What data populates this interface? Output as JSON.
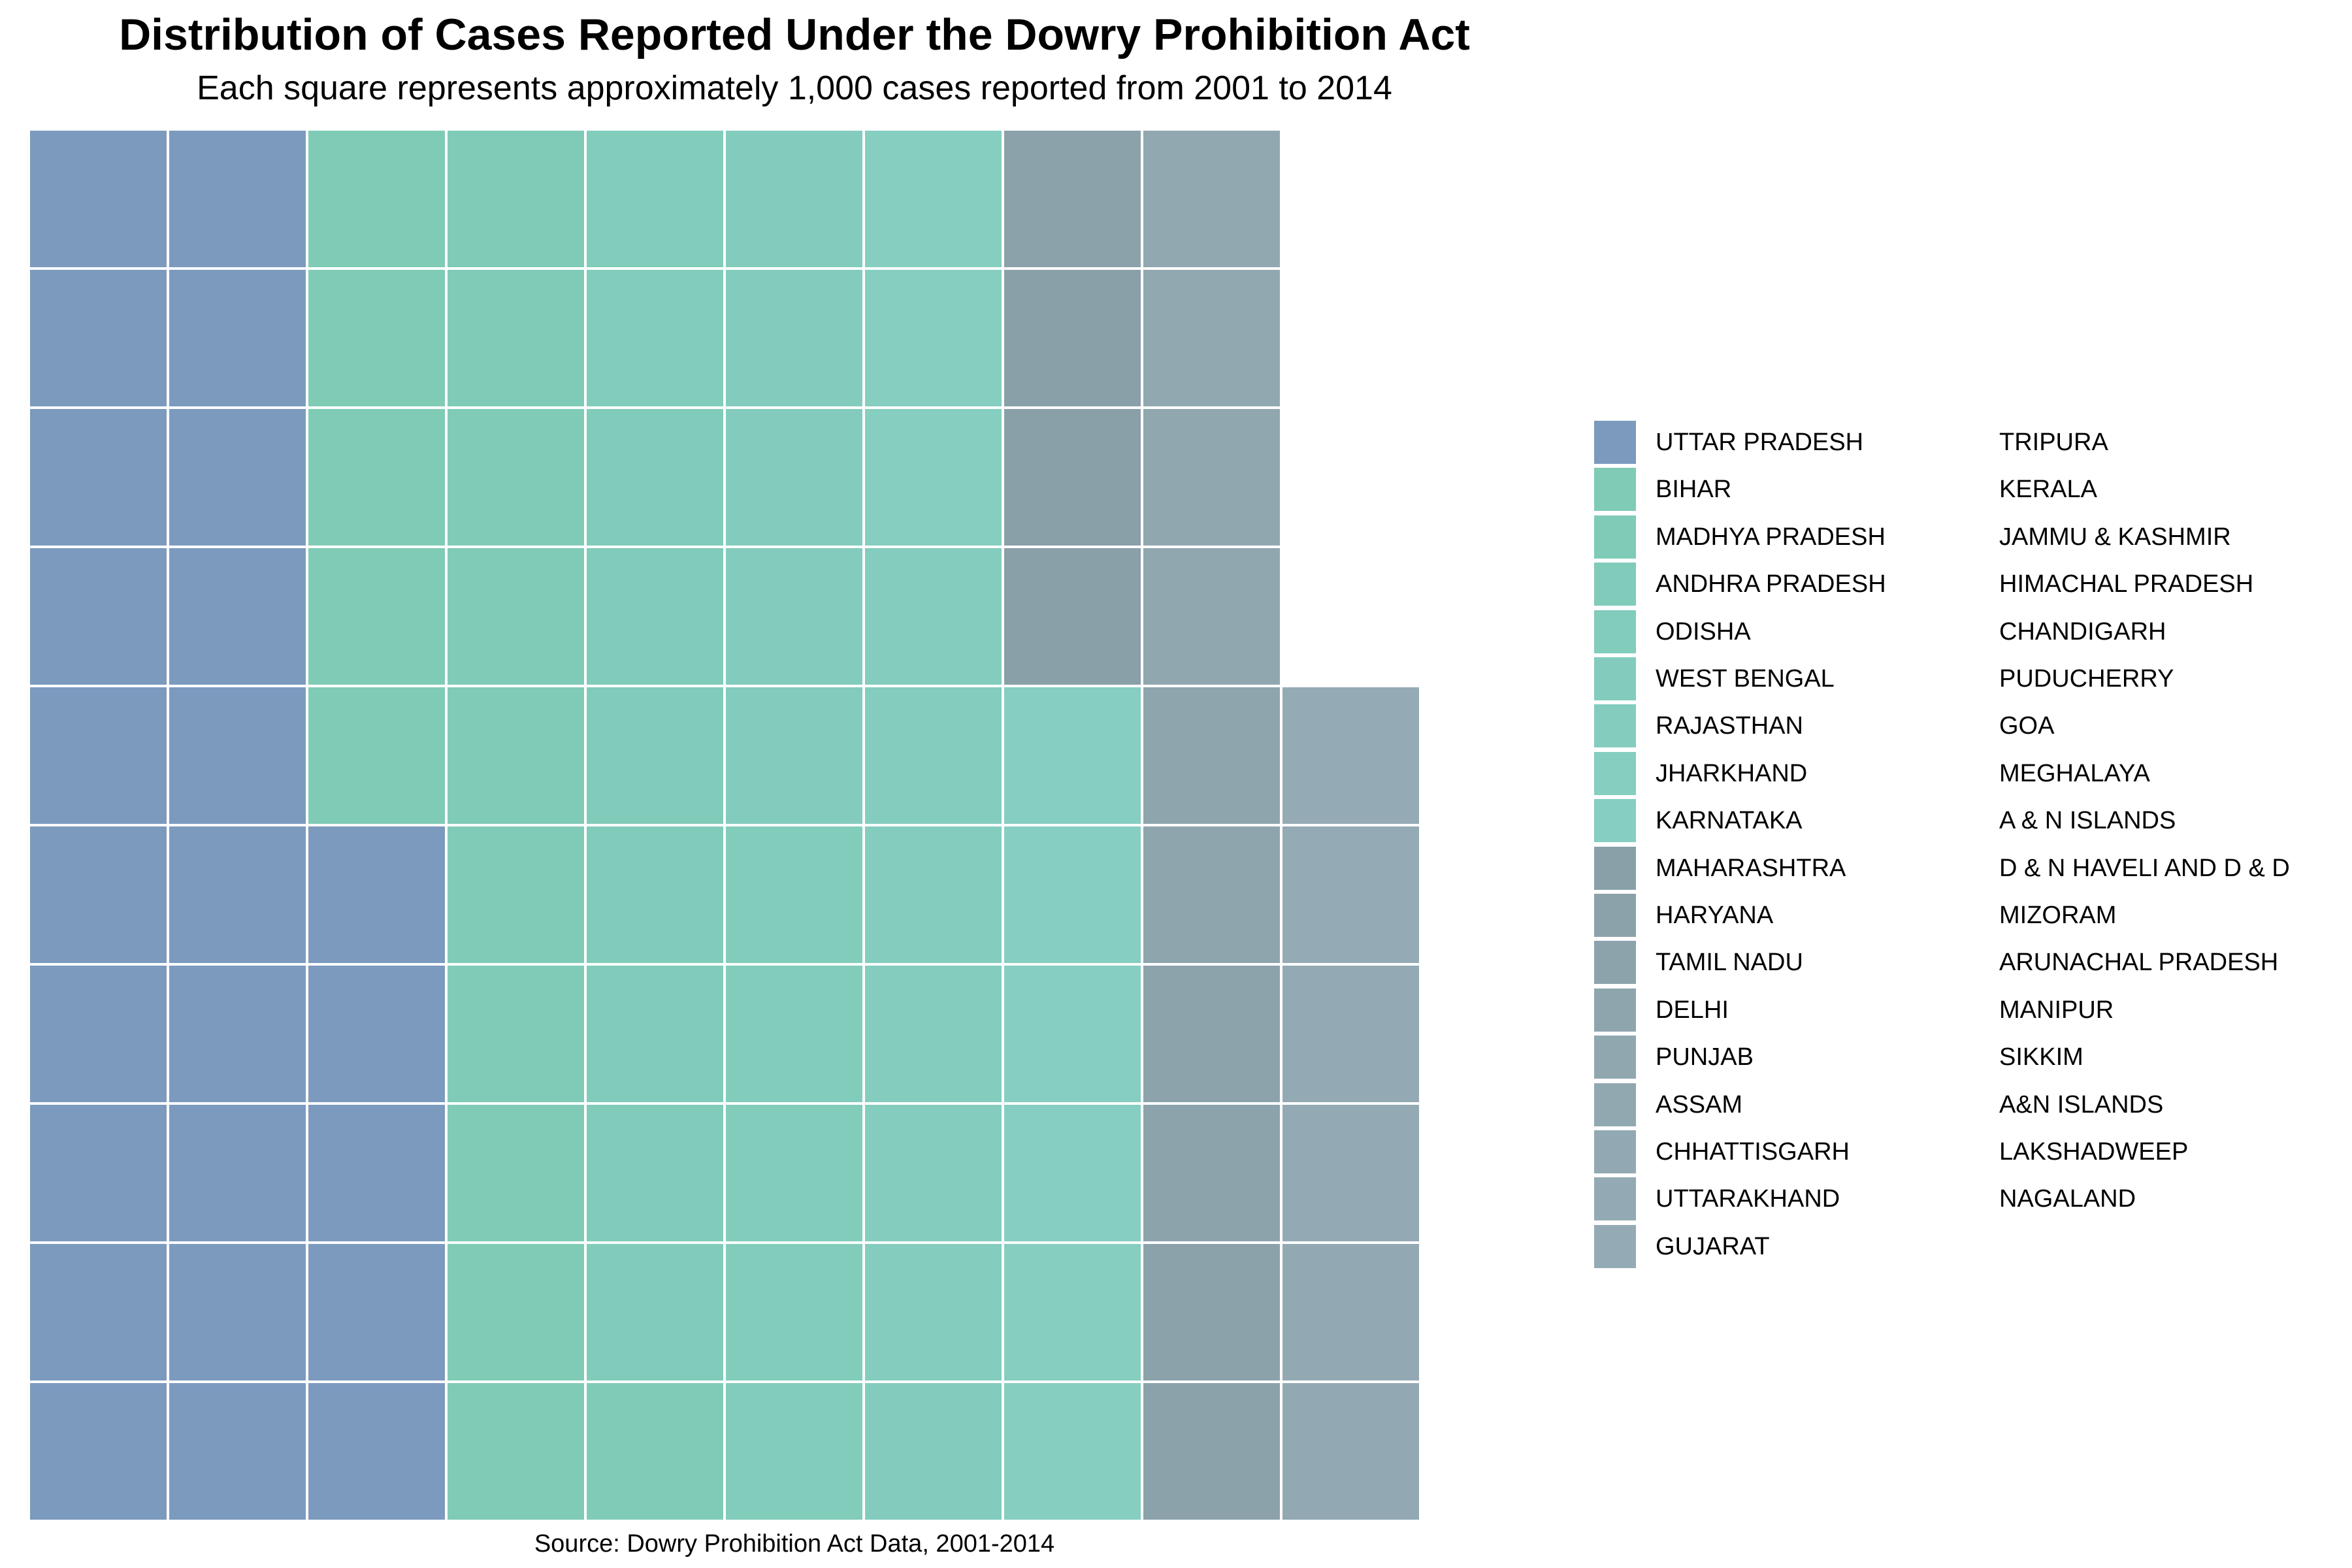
{
  "chart_data": {
    "type": "waffle",
    "title": "Distribution of Cases Reported Under the Dowry Prohibition Act",
    "subtitle": "Each square represents approximately 1,000 cases reported from 2001 to 2014",
    "caption": "Source: Dowry Prohibition Act Data, 2001-2014",
    "grid": {
      "rows": 10,
      "columns": 11,
      "fill_order": "column-major, bottom-to-top"
    },
    "unit": "approximately 1,000 cases",
    "legend_position": "right",
    "series": [
      {
        "name": "UTTAR PRADESH",
        "squares": 25,
        "color": "#7B9ABE"
      },
      {
        "name": "BIHAR",
        "squares": 8,
        "color": "#7FCBB6"
      },
      {
        "name": "MADHYA PRADESH",
        "squares": 8,
        "color": "#7FCBB8"
      },
      {
        "name": "ANDHRA PRADESH",
        "squares": 7,
        "color": "#81CBBA"
      },
      {
        "name": "ODISHA",
        "squares": 7,
        "color": "#82CCBB"
      },
      {
        "name": "WEST BENGAL",
        "squares": 6,
        "color": "#83CCBD"
      },
      {
        "name": "RAJASTHAN",
        "squares": 6,
        "color": "#84CDBE"
      },
      {
        "name": "JHARKHAND",
        "squares": 5,
        "color": "#85CEC0"
      },
      {
        "name": "KARNATAKA",
        "squares": 4,
        "color": "#86CEC1"
      },
      {
        "name": "MAHARASHTRA",
        "squares": 3,
        "color": "#89A0A8"
      },
      {
        "name": "HARYANA",
        "squares": 3,
        "color": "#8BA2AA"
      },
      {
        "name": "TAMIL NADU",
        "squares": 2,
        "color": "#8CA3AC"
      },
      {
        "name": "DELHI",
        "squares": 2,
        "color": "#8EA5AE"
      },
      {
        "name": "PUNJAB",
        "squares": 2,
        "color": "#90A7B0"
      },
      {
        "name": "ASSAM",
        "squares": 2,
        "color": "#91A8B1"
      },
      {
        "name": "CHHATTISGARH",
        "squares": 2,
        "color": "#92A9B3"
      },
      {
        "name": "UTTARAKHAND",
        "squares": 2,
        "color": "#93AAB4"
      },
      {
        "name": "GUJARAT",
        "squares": 2,
        "color": "#94ABB5"
      },
      {
        "name": "TRIPURA",
        "squares": 0
      },
      {
        "name": "KERALA",
        "squares": 0
      },
      {
        "name": "JAMMU & KASHMIR",
        "squares": 0
      },
      {
        "name": "HIMACHAL PRADESH",
        "squares": 0
      },
      {
        "name": "CHANDIGARH",
        "squares": 0
      },
      {
        "name": "PUDUCHERRY",
        "squares": 0
      },
      {
        "name": "GOA",
        "squares": 0
      },
      {
        "name": "MEGHALAYA",
        "squares": 0
      },
      {
        "name": "A & N ISLANDS",
        "squares": 0
      },
      {
        "name": "D & N HAVELI AND D & D",
        "squares": 0
      },
      {
        "name": "MIZORAM",
        "squares": 0
      },
      {
        "name": "ARUNACHAL PRADESH",
        "squares": 0
      },
      {
        "name": "MANIPUR",
        "squares": 0
      },
      {
        "name": "SIKKIM",
        "squares": 0
      },
      {
        "name": "A&N ISLANDS",
        "squares": 0
      },
      {
        "name": "LAKSHADWEEP",
        "squares": 0
      },
      {
        "name": "NAGALAND",
        "squares": 0
      }
    ]
  }
}
